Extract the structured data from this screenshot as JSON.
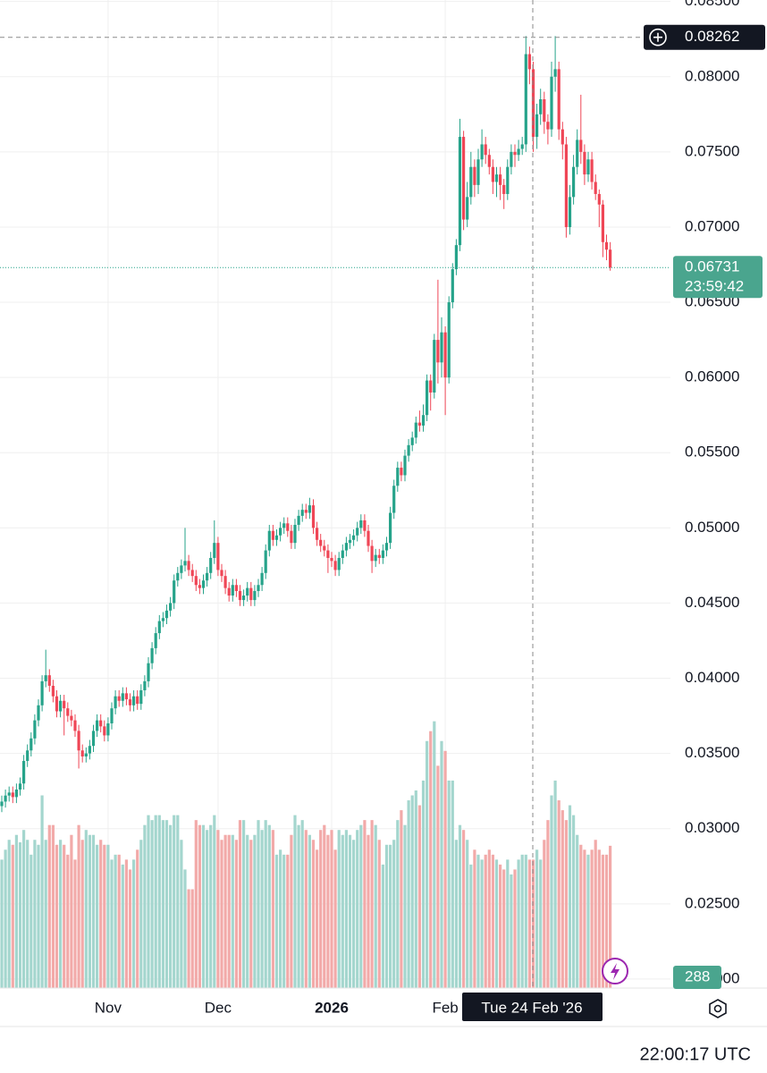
{
  "chart_data": {
    "type": "candlestick",
    "up_color": "#26a38a",
    "down_color": "#ef4656",
    "volume_up_color": "#a4d6ce",
    "volume_down_color": "#f2aaa9",
    "ylim": [
      0.0194,
      0.0851
    ],
    "yticks": [
      {
        "value": 0.02,
        "label": "0.02000"
      },
      {
        "value": 0.025,
        "label": "0.02500"
      },
      {
        "value": 0.03,
        "label": "0.03000"
      },
      {
        "value": 0.035,
        "label": "0.03500"
      },
      {
        "value": 0.04,
        "label": "0.04000"
      },
      {
        "value": 0.045,
        "label": "0.04500"
      },
      {
        "value": 0.05,
        "label": "0.05000"
      },
      {
        "value": 0.055,
        "label": "0.05500"
      },
      {
        "value": 0.06,
        "label": "0.06000"
      },
      {
        "value": 0.065,
        "label": "0.06500"
      },
      {
        "value": 0.07,
        "label": "0.07000"
      },
      {
        "value": 0.075,
        "label": "0.07500"
      },
      {
        "value": 0.08,
        "label": "0.08000"
      },
      {
        "value": 0.085,
        "label": "0.08500"
      }
    ],
    "vlim": [
      0,
      2000
    ],
    "grid": true,
    "categories": [
      null,
      null,
      null,
      null,
      null,
      null,
      null,
      null,
      null,
      null,
      null,
      null,
      null,
      null,
      null,
      null,
      null,
      null,
      null,
      null,
      null,
      null,
      null,
      null,
      null,
      null,
      null,
      null,
      null,
      "Nov",
      null,
      null,
      null,
      null,
      null,
      null,
      null,
      null,
      null,
      null,
      null,
      null,
      null,
      null,
      null,
      null,
      null,
      null,
      null,
      null,
      null,
      null,
      null,
      null,
      null,
      null,
      null,
      null,
      null,
      "Dec",
      null,
      null,
      null,
      null,
      null,
      null,
      null,
      null,
      null,
      null,
      null,
      null,
      null,
      null,
      null,
      null,
      null,
      null,
      null,
      null,
      null,
      null,
      null,
      null,
      null,
      null,
      null,
      null,
      null,
      null,
      "2026",
      null,
      null,
      null,
      null,
      null,
      null,
      null,
      null,
      null,
      null,
      null,
      null,
      null,
      null,
      null,
      null,
      null,
      null,
      null,
      null,
      null,
      null,
      null,
      null,
      null,
      null,
      null,
      null,
      null,
      null,
      "Feb",
      null,
      null,
      null,
      null,
      null,
      null,
      null,
      null,
      null,
      null,
      null,
      null,
      null,
      null,
      null,
      null,
      null,
      null,
      null,
      null,
      null,
      null,
      null,
      null,
      null,
      null,
      null,
      null,
      null,
      null,
      null,
      null,
      null,
      null,
      null,
      null,
      null,
      null,
      null,
      null,
      null,
      null,
      null,
      null,
      null
    ],
    "open": [
      0.0315,
      0.0318,
      0.0322,
      0.0324,
      0.0321,
      0.0326,
      0.033,
      0.0345,
      0.0352,
      0.036,
      0.0372,
      0.0382,
      0.0398,
      0.0402,
      0.0395,
      0.0388,
      0.0378,
      0.0385,
      0.038,
      0.0375,
      0.0372,
      0.0365,
      0.0352,
      0.0348,
      0.035,
      0.0355,
      0.0365,
      0.0372,
      0.0368,
      0.0362,
      0.037,
      0.038,
      0.0388,
      0.0385,
      0.039,
      0.0386,
      0.0382,
      0.0388,
      0.0383,
      0.0392,
      0.0398,
      0.041,
      0.042,
      0.043,
      0.0438,
      0.044,
      0.0445,
      0.045,
      0.0465,
      0.047,
      0.0475,
      0.0478,
      0.0472,
      0.0468,
      0.0462,
      0.046,
      0.0465,
      0.047,
      0.048,
      0.049,
      0.0472,
      0.0468,
      0.046,
      0.0455,
      0.0462,
      0.0458,
      0.0452,
      0.0455,
      0.046,
      0.0452,
      0.0458,
      0.0462,
      0.047,
      0.0485,
      0.0498,
      0.0492,
      0.0495,
      0.05,
      0.0503,
      0.0498,
      0.049,
      0.0502,
      0.0508,
      0.0512,
      0.051,
      0.0515,
      0.05,
      0.0492,
      0.0488,
      0.0485,
      0.048,
      0.0478,
      0.0472,
      0.048,
      0.0485,
      0.049,
      0.0492,
      0.0495,
      0.05,
      0.0505,
      0.0498,
      0.0488,
      0.0478,
      0.0482,
      0.048,
      0.0485,
      0.049,
      0.051,
      0.0528,
      0.054,
      0.0535,
      0.0548,
      0.0555,
      0.056,
      0.057,
      0.0568,
      0.0575,
      0.0598,
      0.059,
      0.0625,
      0.061,
      0.063,
      0.06,
      0.065,
      0.0672,
      0.0688,
      0.076,
      0.0705,
      0.072,
      0.074,
      0.0728,
      0.0745,
      0.0755,
      0.0748,
      0.074,
      0.073,
      0.0735,
      0.0728,
      0.0722,
      0.074,
      0.075,
      0.0748,
      0.0752,
      0.0755,
      0.0815,
      0.0805,
      0.076,
      0.0775,
      0.0785,
      0.077,
      0.0765,
      0.08,
      0.0805,
      0.0765,
      0.0755,
      0.07,
      0.072,
      0.074,
      0.0758,
      0.075,
      0.0735,
      0.0745,
      0.073,
      0.0722,
      0.0715,
      0.069,
      0.0685
    ],
    "high": [
      0.0322,
      0.0326,
      0.0328,
      0.0328,
      0.033,
      0.0334,
      0.0349,
      0.0356,
      0.0364,
      0.0376,
      0.0386,
      0.0402,
      0.0419,
      0.0406,
      0.0399,
      0.0392,
      0.0389,
      0.0389,
      0.0384,
      0.0379,
      0.0376,
      0.0369,
      0.0356,
      0.0354,
      0.0359,
      0.0369,
      0.0376,
      0.0376,
      0.0372,
      0.0374,
      0.0384,
      0.0392,
      0.0392,
      0.0394,
      0.0394,
      0.039,
      0.0392,
      0.0392,
      0.0396,
      0.0402,
      0.0414,
      0.0424,
      0.0434,
      0.0442,
      0.0444,
      0.0449,
      0.0454,
      0.0469,
      0.0474,
      0.0479,
      0.05,
      0.0482,
      0.0476,
      0.0472,
      0.0466,
      0.0469,
      0.0474,
      0.0484,
      0.0505,
      0.0494,
      0.0476,
      0.0472,
      0.0464,
      0.0466,
      0.0466,
      0.0462,
      0.0459,
      0.0464,
      0.0464,
      0.0462,
      0.0466,
      0.0474,
      0.0489,
      0.0502,
      0.0502,
      0.0499,
      0.0504,
      0.0507,
      0.0507,
      0.0502,
      0.0506,
      0.0512,
      0.0516,
      0.0516,
      0.052,
      0.0519,
      0.0504,
      0.0496,
      0.0492,
      0.0489,
      0.0484,
      0.0482,
      0.0484,
      0.0489,
      0.0494,
      0.0496,
      0.0499,
      0.0504,
      0.0509,
      0.0509,
      0.0502,
      0.0492,
      0.0486,
      0.0486,
      0.0489,
      0.0494,
      0.0514,
      0.0532,
      0.0544,
      0.0544,
      0.0552,
      0.0559,
      0.0564,
      0.0574,
      0.0578,
      0.0582,
      0.0602,
      0.0602,
      0.0629,
      0.0665,
      0.064,
      0.0634,
      0.0654,
      0.0676,
      0.0692,
      0.0772,
      0.0764,
      0.073,
      0.075,
      0.0745,
      0.0752,
      0.0765,
      0.076,
      0.0752,
      0.0745,
      0.074,
      0.074,
      0.0732,
      0.0745,
      0.0755,
      0.0755,
      0.0758,
      0.076,
      0.0827,
      0.082,
      0.081,
      0.0782,
      0.0792,
      0.079,
      0.0775,
      0.081,
      0.0827,
      0.081,
      0.077,
      0.076,
      0.0728,
      0.0748,
      0.0765,
      0.0788,
      0.0755,
      0.075,
      0.075,
      0.0735,
      0.0725,
      0.0718,
      0.0695,
      0.069
    ],
    "low": [
      0.0311,
      0.0314,
      0.0318,
      0.0317,
      0.0317,
      0.0322,
      0.0326,
      0.0341,
      0.0348,
      0.0356,
      0.0368,
      0.0378,
      0.0394,
      0.0391,
      0.0384,
      0.0374,
      0.0374,
      0.0362,
      0.0371,
      0.0368,
      0.0361,
      0.034,
      0.0344,
      0.0344,
      0.0346,
      0.0351,
      0.0361,
      0.0364,
      0.0358,
      0.0358,
      0.0366,
      0.0376,
      0.0381,
      0.0381,
      0.0382,
      0.0378,
      0.0378,
      0.0379,
      0.0379,
      0.0388,
      0.0394,
      0.0406,
      0.0416,
      0.0426,
      0.0434,
      0.0436,
      0.0441,
      0.0446,
      0.0461,
      0.0466,
      0.0471,
      0.0468,
      0.0464,
      0.0458,
      0.0456,
      0.0456,
      0.0461,
      0.0466,
      0.0476,
      0.0468,
      0.0464,
      0.0456,
      0.0451,
      0.0451,
      0.0454,
      0.0448,
      0.0448,
      0.0451,
      0.0448,
      0.0448,
      0.0454,
      0.0458,
      0.0466,
      0.0481,
      0.0488,
      0.0488,
      0.0491,
      0.0496,
      0.0494,
      0.0486,
      0.0486,
      0.0498,
      0.0504,
      0.0506,
      0.0506,
      0.0496,
      0.0488,
      0.0484,
      0.0481,
      0.047,
      0.0474,
      0.0468,
      0.0468,
      0.0476,
      0.0481,
      0.0486,
      0.0488,
      0.0491,
      0.0496,
      0.0494,
      0.0484,
      0.047,
      0.0474,
      0.0476,
      0.0476,
      0.0481,
      0.0486,
      0.0506,
      0.0524,
      0.0531,
      0.0531,
      0.0544,
      0.0551,
      0.0556,
      0.0564,
      0.0564,
      0.0571,
      0.0578,
      0.0586,
      0.0596,
      0.06,
      0.0575,
      0.0596,
      0.0646,
      0.0668,
      0.0684,
      0.0698,
      0.07,
      0.0715,
      0.072,
      0.0722,
      0.074,
      0.0742,
      0.0735,
      0.0722,
      0.072,
      0.0718,
      0.0712,
      0.0718,
      0.0735,
      0.074,
      0.0744,
      0.0748,
      0.075,
      0.0795,
      0.075,
      0.0752,
      0.0768,
      0.0762,
      0.0755,
      0.076,
      0.079,
      0.0758,
      0.0745,
      0.0693,
      0.0695,
      0.0715,
      0.0735,
      0.0742,
      0.0728,
      0.073,
      0.0725,
      0.0718,
      0.07,
      0.068,
      0.0678,
      0.0671
    ],
    "close": [
      0.0318,
      0.0322,
      0.0324,
      0.0321,
      0.0326,
      0.033,
      0.0345,
      0.0352,
      0.036,
      0.0372,
      0.0382,
      0.0398,
      0.0402,
      0.0395,
      0.0388,
      0.0378,
      0.0385,
      0.038,
      0.0375,
      0.0372,
      0.0365,
      0.0352,
      0.0348,
      0.035,
      0.0355,
      0.0365,
      0.0372,
      0.0368,
      0.0362,
      0.037,
      0.038,
      0.0388,
      0.0385,
      0.039,
      0.0386,
      0.0382,
      0.0388,
      0.0383,
      0.0392,
      0.0398,
      0.041,
      0.042,
      0.043,
      0.0438,
      0.044,
      0.0445,
      0.045,
      0.0465,
      0.047,
      0.0475,
      0.0478,
      0.0472,
      0.0468,
      0.0462,
      0.046,
      0.0465,
      0.047,
      0.048,
      0.049,
      0.0472,
      0.0468,
      0.046,
      0.0455,
      0.0462,
      0.0458,
      0.0452,
      0.0455,
      0.046,
      0.0452,
      0.0458,
      0.0462,
      0.047,
      0.0485,
      0.0498,
      0.0492,
      0.0495,
      0.05,
      0.0503,
      0.0498,
      0.049,
      0.0502,
      0.0508,
      0.0512,
      0.051,
      0.0515,
      0.05,
      0.0492,
      0.0488,
      0.0485,
      0.048,
      0.0478,
      0.0472,
      0.048,
      0.0485,
      0.049,
      0.0492,
      0.0495,
      0.05,
      0.0505,
      0.0498,
      0.0488,
      0.0478,
      0.0482,
      0.048,
      0.0485,
      0.049,
      0.051,
      0.0528,
      0.054,
      0.0535,
      0.0548,
      0.0555,
      0.056,
      0.057,
      0.0568,
      0.0575,
      0.0598,
      0.059,
      0.0625,
      0.061,
      0.063,
      0.06,
      0.065,
      0.0672,
      0.0688,
      0.076,
      0.0705,
      0.072,
      0.074,
      0.0728,
      0.0745,
      0.0755,
      0.0748,
      0.074,
      0.073,
      0.0735,
      0.0728,
      0.0722,
      0.074,
      0.075,
      0.0748,
      0.0752,
      0.0755,
      0.0815,
      0.0805,
      0.076,
      0.0775,
      0.0785,
      0.077,
      0.0765,
      0.08,
      0.0805,
      0.0765,
      0.0755,
      0.07,
      0.072,
      0.074,
      0.0758,
      0.075,
      0.0735,
      0.0745,
      0.073,
      0.0722,
      0.0715,
      0.069,
      0.0685,
      0.06731
    ],
    "volumes": [
      260,
      280,
      300,
      290,
      310,
      295,
      320,
      300,
      270,
      300,
      290,
      390,
      300,
      330,
      330,
      290,
      300,
      290,
      270,
      310,
      260,
      330,
      300,
      320,
      310,
      310,
      290,
      300,
      290,
      290,
      260,
      270,
      270,
      250,
      260,
      240,
      260,
      280,
      300,
      330,
      350,
      340,
      350,
      350,
      340,
      340,
      330,
      350,
      350,
      300,
      240,
      200,
      200,
      340,
      330,
      330,
      320,
      330,
      350,
      320,
      300,
      310,
      310,
      310,
      300,
      340,
      340,
      310,
      300,
      310,
      340,
      320,
      340,
      330,
      320,
      270,
      280,
      270,
      270,
      310,
      350,
      330,
      340,
      320,
      310,
      300,
      280,
      320,
      330,
      310,
      320,
      280,
      320,
      310,
      320,
      310,
      300,
      320,
      330,
      340,
      310,
      340,
      330,
      300,
      250,
      290,
      290,
      300,
      340,
      360,
      330,
      380,
      390,
      400,
      370,
      420,
      500,
      520,
      540,
      450,
      500,
      480,
      420,
      420,
      300,
      330,
      320,
      300,
      250,
      280,
      270,
      260,
      270,
      280,
      270,
      260,
      250,
      240,
      260,
      230,
      240,
      260,
      270,
      270,
      260,
      260,
      280,
      260,
      300,
      340,
      390,
      420,
      380,
      360,
      340,
      370,
      350,
      310,
      290,
      280,
      270,
      280,
      300,
      280,
      270,
      270,
      288
    ],
    "countdown": "23:59:42",
    "crosshair": {
      "price": 0.08262,
      "date": "Tue 24 Feb '26"
    },
    "clock": "22:00:17 UTC"
  }
}
